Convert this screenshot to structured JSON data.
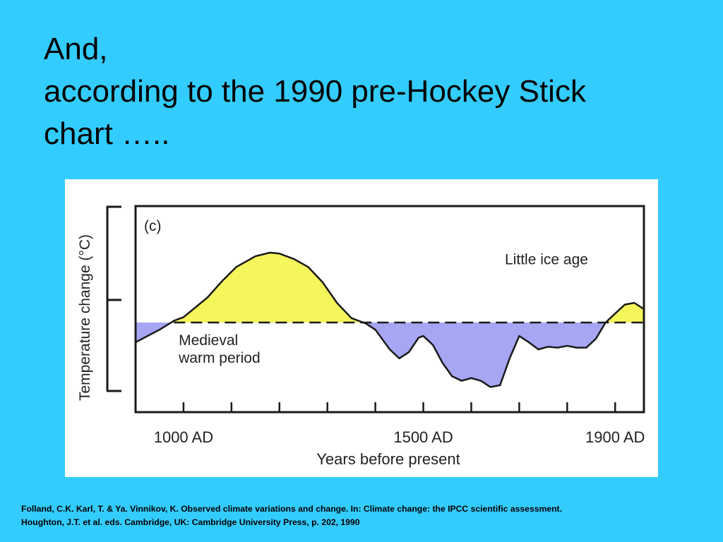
{
  "slide": {
    "title_lines": [
      "And,",
      "according to the 1990 pre-Hockey Stick",
      "chart ….."
    ],
    "citation_lines": [
      "Folland, C.K. Karl, T. & Ya. Vinnikov, K. Observed climate variations and change. In: Climate change: the IPCC scientific assessment.",
      "Houghton, J.T. et al. eds. Cambridge, UK: Cambridge University Press, p. 202, 1990"
    ]
  },
  "chart_data": {
    "type": "area",
    "panel_label": "(c)",
    "xlabel": "Years before present",
    "ylabel": "Temperature change (°C)",
    "x_tick_labels": [
      "1000 AD",
      "1500 AD",
      "1900 AD"
    ],
    "x_tick_values": [
      1000,
      1500,
      1900
    ],
    "xlim": [
      900,
      1960
    ],
    "ylim": [
      -1.0,
      1.3
    ],
    "baseline": 0,
    "baseline_style": "dashed",
    "annotations": [
      {
        "text": "Little ice age",
        "x": 1670,
        "y": 0.65
      },
      {
        "text": "Medieval",
        "x": 990,
        "y": -0.25
      },
      {
        "text": "warm period",
        "x": 990,
        "y": -0.45
      }
    ],
    "colors": {
      "above": "#f5f55c",
      "below": "#a6a6f5",
      "line": "#1a1a1a",
      "background": "#33ccff"
    },
    "series": [
      {
        "x": [
          900,
          950,
          980,
          1000,
          1050,
          1080,
          1110,
          1150,
          1180,
          1200,
          1230,
          1260,
          1290,
          1320,
          1350,
          1380,
          1400,
          1430,
          1450,
          1470,
          1490,
          1500,
          1520,
          1540,
          1560,
          1580,
          1600,
          1620,
          1640,
          1660,
          1680,
          1700,
          1720,
          1740,
          1760,
          1780,
          1800,
          1820,
          1840,
          1860,
          1880,
          1900,
          1920,
          1940,
          1960
        ],
        "y": [
          -0.22,
          -0.08,
          0.02,
          0.06,
          0.28,
          0.46,
          0.62,
          0.74,
          0.78,
          0.77,
          0.71,
          0.62,
          0.45,
          0.22,
          0.05,
          -0.01,
          -0.08,
          -0.3,
          -0.4,
          -0.33,
          -0.17,
          -0.15,
          -0.25,
          -0.45,
          -0.6,
          -0.65,
          -0.62,
          -0.65,
          -0.72,
          -0.7,
          -0.4,
          -0.15,
          -0.22,
          -0.3,
          -0.27,
          -0.28,
          -0.26,
          -0.28,
          -0.28,
          -0.18,
          0,
          0.1,
          0.2,
          0.22,
          0.15
        ]
      }
    ]
  }
}
